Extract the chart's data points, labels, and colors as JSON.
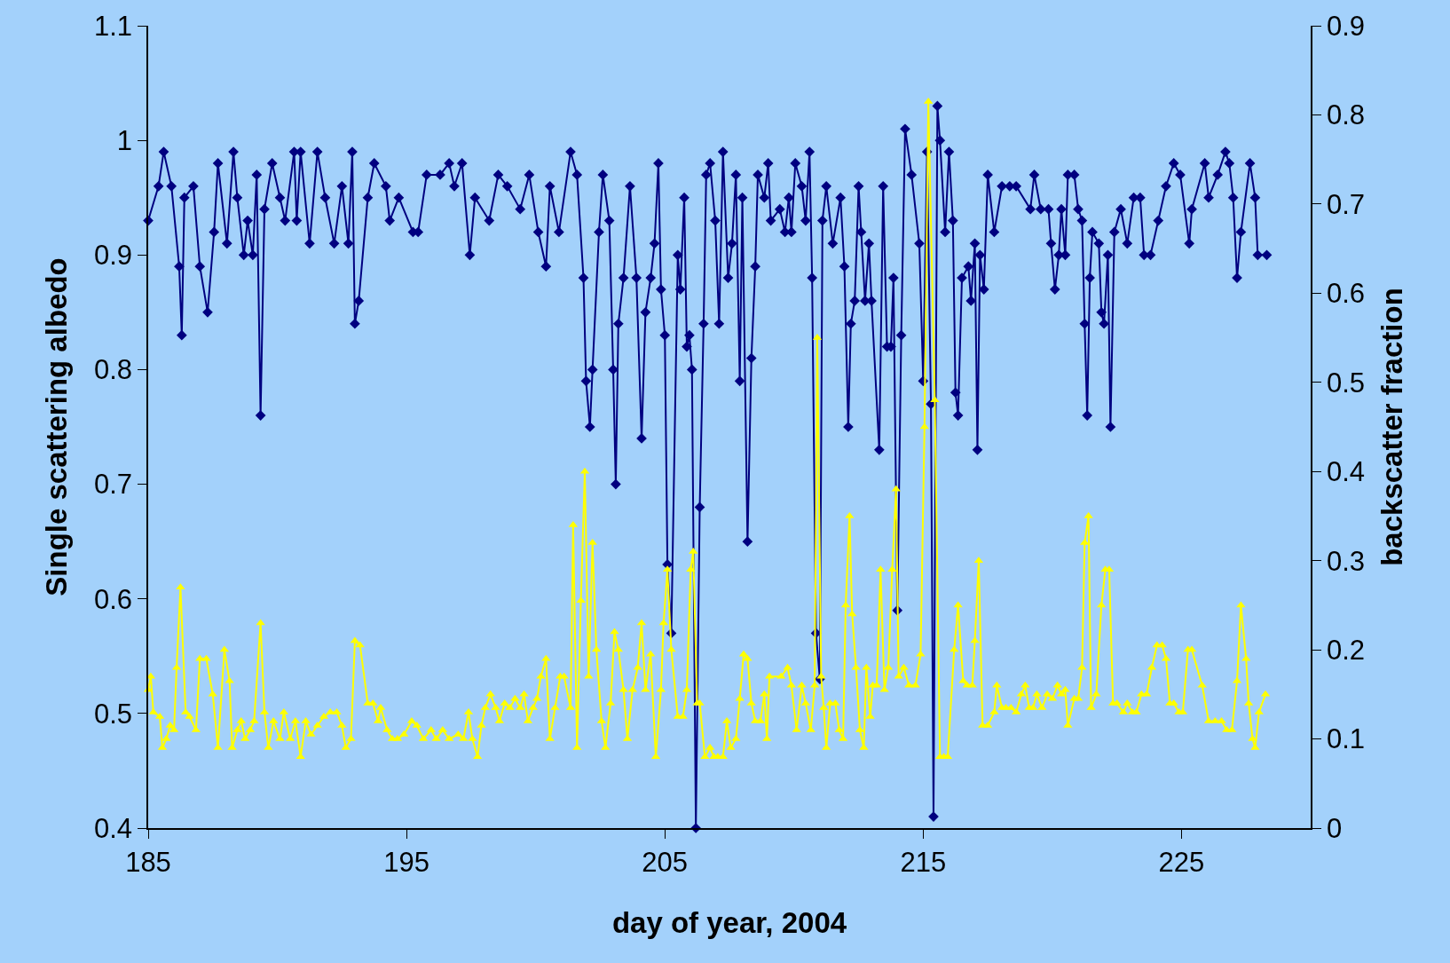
{
  "chart_data": {
    "type": "line",
    "xlabel": "day of year, 2004",
    "ylabel": "Single scattering albedo",
    "y2label": "backscatter fraction",
    "xlim": [
      185,
      230
    ],
    "xticks": [
      185,
      195,
      205,
      215,
      225
    ],
    "ylim": [
      0.4,
      1.1
    ],
    "yticks": [
      0.4,
      0.5,
      0.6,
      0.7,
      0.8,
      0.9,
      1,
      1.1
    ],
    "y2lim": [
      0,
      0.9
    ],
    "y2ticks": [
      0,
      0.1,
      0.2,
      0.3,
      0.4,
      0.5,
      0.6,
      0.7,
      0.8,
      0.9
    ],
    "grid": false,
    "series": [
      {
        "color": "#000080",
        "marker": "diamond",
        "line_style": "solid",
        "x": [
          185.0,
          185.4,
          185.6,
          185.9,
          186.2,
          186.3,
          186.4,
          186.75,
          187.0,
          187.3,
          187.55,
          187.7,
          188.05,
          188.3,
          188.45,
          188.7,
          188.85,
          189.05,
          189.2,
          189.35,
          189.5,
          189.8,
          190.1,
          190.3,
          190.65,
          190.75,
          190.9,
          191.25,
          191.55,
          191.85,
          192.2,
          192.5,
          192.75,
          192.9,
          193.0,
          193.15,
          193.5,
          193.75,
          194.2,
          194.35,
          194.7,
          195.25,
          195.45,
          195.78,
          196.3,
          196.65,
          196.85,
          197.15,
          197.45,
          197.65,
          198.2,
          198.55,
          198.9,
          199.4,
          199.75,
          200.1,
          200.4,
          200.55,
          200.9,
          201.35,
          201.6,
          201.85,
          201.95,
          202.1,
          202.2,
          202.45,
          202.6,
          202.85,
          203.0,
          203.1,
          203.2,
          203.4,
          203.65,
          203.9,
          204.1,
          204.25,
          204.45,
          204.6,
          204.75,
          204.85,
          205.0,
          205.1,
          205.25,
          205.5,
          205.6,
          205.75,
          205.85,
          205.95,
          206.05,
          206.2,
          206.35,
          206.5,
          206.6,
          206.75,
          206.95,
          207.1,
          207.25,
          207.45,
          207.6,
          207.75,
          207.9,
          208.0,
          208.2,
          208.35,
          208.5,
          208.6,
          208.85,
          209.0,
          209.1,
          209.45,
          209.65,
          209.8,
          209.9,
          210.05,
          210.3,
          210.45,
          210.6,
          210.7,
          210.85,
          211.0,
          211.1,
          211.25,
          211.5,
          211.8,
          211.95,
          212.1,
          212.2,
          212.35,
          212.5,
          212.6,
          212.75,
          212.9,
          213.0,
          213.3,
          213.45,
          213.6,
          213.75,
          213.85,
          214.0,
          214.15,
          214.3,
          214.55,
          214.85,
          215.0,
          215.15,
          215.3,
          215.4,
          215.55,
          215.65,
          215.85,
          216.0,
          216.15,
          216.25,
          216.35,
          216.5,
          216.75,
          216.85,
          217.0,
          217.1,
          217.2,
          217.35,
          217.5,
          217.75,
          218.05,
          218.35,
          218.6,
          219.15,
          219.3,
          219.55,
          219.85,
          219.95,
          220.1,
          220.25,
          220.35,
          220.5,
          220.6,
          220.85,
          221.0,
          221.15,
          221.25,
          221.35,
          221.45,
          221.55,
          221.8,
          221.9,
          222.0,
          222.15,
          222.25,
          222.4,
          222.65,
          222.9,
          223.15,
          223.4,
          223.55,
          223.8,
          224.1,
          224.4,
          224.7,
          224.95,
          225.3,
          225.4,
          225.9,
          226.05,
          226.4,
          226.7,
          226.85,
          227.0,
          227.15,
          227.3,
          227.65,
          227.85,
          227.95,
          228.3
        ],
        "values": [
          0.93,
          0.96,
          0.99,
          0.96,
          0.89,
          0.83,
          0.95,
          0.96,
          0.89,
          0.85,
          0.92,
          0.98,
          0.91,
          0.99,
          0.95,
          0.9,
          0.93,
          0.9,
          0.97,
          0.76,
          0.94,
          0.98,
          0.95,
          0.93,
          0.99,
          0.93,
          0.99,
          0.91,
          0.99,
          0.95,
          0.91,
          0.96,
          0.91,
          0.99,
          0.84,
          0.86,
          0.95,
          0.98,
          0.96,
          0.93,
          0.95,
          0.92,
          0.92,
          0.97,
          0.97,
          0.98,
          0.96,
          0.98,
          0.9,
          0.95,
          0.93,
          0.97,
          0.96,
          0.94,
          0.97,
          0.92,
          0.89,
          0.96,
          0.92,
          0.99,
          0.97,
          0.88,
          0.79,
          0.75,
          0.8,
          0.92,
          0.97,
          0.93,
          0.8,
          0.7,
          0.84,
          0.88,
          0.96,
          0.88,
          0.74,
          0.85,
          0.88,
          0.91,
          0.98,
          0.87,
          0.83,
          0.63,
          0.57,
          0.9,
          0.87,
          0.95,
          0.82,
          0.83,
          0.8,
          0.4,
          0.68,
          0.84,
          0.97,
          0.98,
          0.93,
          0.84,
          0.99,
          0.88,
          0.91,
          0.97,
          0.79,
          0.95,
          0.65,
          0.81,
          0.89,
          0.97,
          0.95,
          0.98,
          0.93,
          0.94,
          0.92,
          0.95,
          0.92,
          0.98,
          0.96,
          0.93,
          0.99,
          0.88,
          0.57,
          0.53,
          0.93,
          0.96,
          0.91,
          0.95,
          0.89,
          0.75,
          0.84,
          0.86,
          0.96,
          0.92,
          0.86,
          0.91,
          0.86,
          0.73,
          0.96,
          0.82,
          0.82,
          0.88,
          0.59,
          0.83,
          1.01,
          0.97,
          0.91,
          0.79,
          0.99,
          0.77,
          0.41,
          1.03,
          1.0,
          0.92,
          0.99,
          0.93,
          0.78,
          0.76,
          0.88,
          0.89,
          0.86,
          0.91,
          0.73,
          0.9,
          0.87,
          0.97,
          0.92,
          0.96,
          0.96,
          0.96,
          0.94,
          0.97,
          0.94,
          0.94,
          0.91,
          0.87,
          0.9,
          0.94,
          0.9,
          0.97,
          0.97,
          0.94,
          0.93,
          0.84,
          0.76,
          0.88,
          0.92,
          0.91,
          0.85,
          0.84,
          0.9,
          0.75,
          0.92,
          0.94,
          0.91,
          0.95,
          0.95,
          0.9,
          0.9,
          0.93,
          0.96,
          0.98,
          0.97,
          0.91,
          0.94,
          0.98,
          0.95,
          0.97,
          0.99,
          0.98,
          0.95,
          0.88,
          0.92,
          0.98,
          0.95,
          0.9,
          0.9
        ]
      },
      {
        "color": "#ffff00",
        "marker": "triangle",
        "line_style": "solid",
        "axis": "y2",
        "x": [
          185.0,
          185.1,
          185.2,
          185.45,
          185.55,
          185.7,
          185.85,
          186.0,
          186.1,
          186.25,
          186.45,
          186.6,
          186.85,
          187.0,
          187.25,
          187.5,
          187.7,
          187.95,
          188.15,
          188.25,
          188.45,
          188.6,
          188.75,
          188.95,
          189.1,
          189.35,
          189.5,
          189.65,
          189.85,
          190.1,
          190.25,
          190.5,
          190.7,
          190.9,
          191.1,
          191.3,
          191.55,
          191.8,
          192.05,
          192.3,
          192.5,
          192.65,
          192.85,
          193.0,
          193.2,
          193.5,
          193.7,
          193.9,
          194.0,
          194.25,
          194.45,
          194.65,
          194.9,
          195.2,
          195.4,
          195.65,
          195.95,
          196.15,
          196.4,
          196.65,
          197.0,
          197.2,
          197.4,
          197.55,
          197.75,
          197.9,
          198.05,
          198.25,
          198.45,
          198.6,
          198.8,
          199.0,
          199.2,
          199.4,
          199.55,
          199.7,
          199.9,
          200.05,
          200.2,
          200.4,
          200.55,
          200.75,
          200.95,
          201.1,
          201.35,
          201.45,
          201.6,
          201.75,
          201.9,
          202.05,
          202.2,
          202.35,
          202.55,
          202.7,
          202.9,
          203.05,
          203.2,
          203.4,
          203.55,
          203.75,
          203.95,
          204.1,
          204.25,
          204.45,
          204.65,
          204.85,
          204.95,
          205.1,
          205.25,
          205.5,
          205.7,
          205.85,
          206.0,
          206.1,
          206.25,
          206.35,
          206.55,
          206.75,
          206.9,
          207.05,
          207.25,
          207.4,
          207.55,
          207.75,
          207.9,
          208.05,
          208.2,
          208.35,
          208.5,
          208.7,
          208.85,
          208.95,
          209.05,
          209.5,
          209.75,
          209.9,
          210.1,
          210.3,
          210.45,
          210.65,
          210.8,
          210.9,
          211.05,
          211.15,
          211.25,
          211.4,
          211.6,
          211.75,
          211.9,
          212.0,
          212.15,
          212.25,
          212.4,
          212.55,
          212.7,
          212.8,
          212.95,
          213.05,
          213.2,
          213.35,
          213.5,
          213.65,
          213.8,
          213.95,
          214.05,
          214.25,
          214.45,
          214.7,
          214.9,
          215.05,
          215.2,
          215.45,
          215.65,
          215.8,
          215.95,
          216.2,
          216.35,
          216.55,
          216.7,
          216.9,
          217.0,
          217.15,
          217.3,
          217.5,
          217.75,
          217.85,
          218.05,
          218.2,
          218.4,
          218.6,
          218.8,
          218.95,
          219.1,
          219.25,
          219.4,
          219.6,
          219.8,
          220.0,
          220.2,
          220.35,
          220.5,
          220.6,
          220.85,
          221.0,
          221.15,
          221.25,
          221.4,
          221.5,
          221.7,
          221.9,
          222.05,
          222.2,
          222.35,
          222.5,
          222.75,
          222.9,
          223.1,
          223.25,
          223.45,
          223.65,
          223.85,
          224.05,
          224.25,
          224.4,
          224.55,
          224.7,
          224.9,
          225.05,
          225.25,
          225.4,
          225.8,
          226.05,
          226.3,
          226.55,
          226.75,
          226.95,
          227.15,
          227.3,
          227.5,
          227.6,
          227.75,
          227.85,
          228.0,
          228.25
        ],
        "values": [
          0.155,
          0.17,
          0.13,
          0.125,
          0.09,
          0.1,
          0.115,
          0.11,
          0.18,
          0.27,
          0.13,
          0.125,
          0.11,
          0.19,
          0.19,
          0.15,
          0.09,
          0.2,
          0.165,
          0.09,
          0.11,
          0.12,
          0.1,
          0.11,
          0.12,
          0.23,
          0.13,
          0.09,
          0.12,
          0.1,
          0.13,
          0.1,
          0.12,
          0.08,
          0.12,
          0.105,
          0.115,
          0.125,
          0.13,
          0.13,
          0.115,
          0.09,
          0.1,
          0.21,
          0.205,
          0.14,
          0.14,
          0.12,
          0.135,
          0.11,
          0.1,
          0.1,
          0.105,
          0.12,
          0.115,
          0.1,
          0.11,
          0.1,
          0.11,
          0.1,
          0.105,
          0.1,
          0.13,
          0.1,
          0.08,
          0.115,
          0.135,
          0.15,
          0.135,
          0.12,
          0.14,
          0.135,
          0.145,
          0.135,
          0.15,
          0.12,
          0.135,
          0.145,
          0.17,
          0.19,
          0.1,
          0.135,
          0.17,
          0.17,
          0.135,
          0.34,
          0.09,
          0.255,
          0.4,
          0.17,
          0.32,
          0.2,
          0.12,
          0.09,
          0.14,
          0.22,
          0.2,
          0.155,
          0.1,
          0.155,
          0.18,
          0.23,
          0.155,
          0.195,
          0.08,
          0.155,
          0.23,
          0.29,
          0.2,
          0.125,
          0.125,
          0.155,
          0.29,
          0.31,
          0.14,
          0.14,
          0.08,
          0.09,
          0.08,
          0.08,
          0.08,
          0.12,
          0.09,
          0.1,
          0.145,
          0.195,
          0.19,
          0.14,
          0.12,
          0.12,
          0.15,
          0.1,
          0.17,
          0.17,
          0.18,
          0.16,
          0.11,
          0.16,
          0.14,
          0.11,
          0.16,
          0.55,
          0.17,
          0.135,
          0.09,
          0.14,
          0.14,
          0.11,
          0.1,
          0.25,
          0.35,
          0.24,
          0.18,
          0.11,
          0.09,
          0.18,
          0.125,
          0.16,
          0.16,
          0.29,
          0.155,
          0.18,
          0.29,
          0.38,
          0.17,
          0.18,
          0.16,
          0.16,
          0.195,
          0.45,
          0.815,
          0.48,
          0.08,
          0.08,
          0.08,
          0.2,
          0.25,
          0.165,
          0.16,
          0.16,
          0.21,
          0.3,
          0.115,
          0.115,
          0.13,
          0.16,
          0.135,
          0.135,
          0.135,
          0.13,
          0.15,
          0.16,
          0.135,
          0.135,
          0.15,
          0.135,
          0.15,
          0.145,
          0.16,
          0.15,
          0.155,
          0.115,
          0.145,
          0.145,
          0.18,
          0.32,
          0.35,
          0.135,
          0.15,
          0.25,
          0.29,
          0.29,
          0.14,
          0.14,
          0.13,
          0.14,
          0.13,
          0.13,
          0.15,
          0.15,
          0.18,
          0.205,
          0.205,
          0.19,
          0.14,
          0.14,
          0.13,
          0.13,
          0.2,
          0.2,
          0.16,
          0.12,
          0.12,
          0.12,
          0.11,
          0.11,
          0.165,
          0.25,
          0.19,
          0.14,
          0.1,
          0.09,
          0.13,
          0.15
        ]
      }
    ]
  }
}
